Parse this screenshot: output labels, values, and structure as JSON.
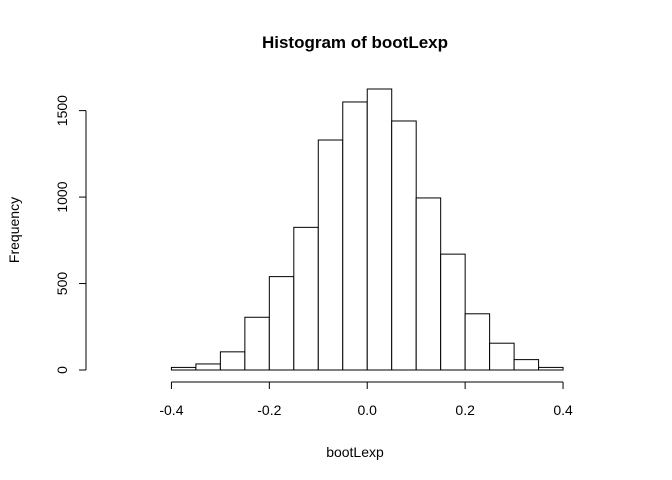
{
  "chart_data": {
    "type": "bar",
    "title": "Histogram of bootLexp",
    "xlabel": "bootLexp",
    "ylabel": "Frequency",
    "bin_width": 0.05,
    "bin_edges": [
      -0.4,
      -0.35,
      -0.3,
      -0.25,
      -0.2,
      -0.15,
      -0.1,
      -0.05,
      0.0,
      0.05,
      0.1,
      0.15,
      0.2,
      0.25,
      0.3,
      0.35,
      0.4
    ],
    "values": [
      15,
      35,
      105,
      305,
      540,
      825,
      1330,
      1550,
      1625,
      1440,
      995,
      670,
      325,
      155,
      60,
      15
    ],
    "xlim": [
      -0.55,
      0.5
    ],
    "ylim": [
      0,
      1625
    ],
    "x_ticks": [
      -0.4,
      -0.2,
      0.0,
      0.2,
      0.4
    ],
    "x_tick_labels": [
      "-0.4",
      "-0.2",
      "0.0",
      "0.2",
      "0.4"
    ],
    "y_ticks": [
      0,
      500,
      1000,
      1500
    ],
    "y_tick_labels": [
      "0",
      "500",
      "1000",
      "1500"
    ],
    "grid": false,
    "legend": "none",
    "bar_fill": "#ffffff",
    "bar_stroke": "#000000"
  }
}
